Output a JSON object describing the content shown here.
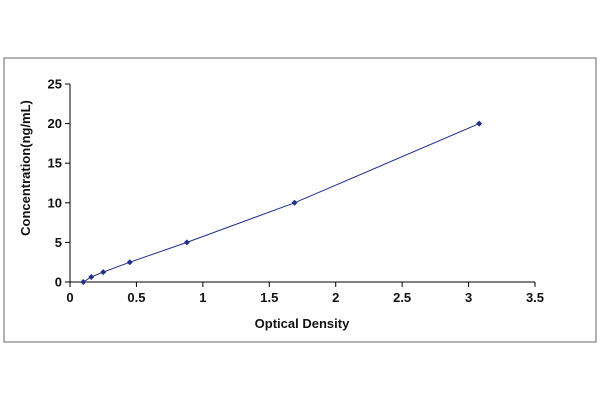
{
  "chart_data": {
    "type": "scatter",
    "title": "",
    "xlabel": "Optical Density",
    "ylabel": "Concentration(ng/mL)",
    "xlim": [
      0,
      3.5
    ],
    "ylim": [
      0,
      25
    ],
    "x_ticks": [
      "0",
      "0.5",
      "1",
      "1.5",
      "2",
      "2.5",
      "3",
      "3.5"
    ],
    "y_ticks": [
      "0",
      "5",
      "10",
      "15",
      "20",
      "25"
    ],
    "grid": false,
    "legend": "none",
    "series": [
      {
        "x": [
          0.1,
          0.16,
          0.25,
          0.45,
          0.88,
          1.69,
          3.08
        ],
        "y": [
          0.0,
          0.63,
          1.25,
          2.5,
          5.0,
          10.0,
          20.0
        ],
        "marker": "diamond",
        "fit_line": true
      }
    ],
    "colors": {
      "marker": "#1f2f8a",
      "line": "#1f2f8a",
      "axis": "#000000",
      "frame": "#555555"
    }
  }
}
